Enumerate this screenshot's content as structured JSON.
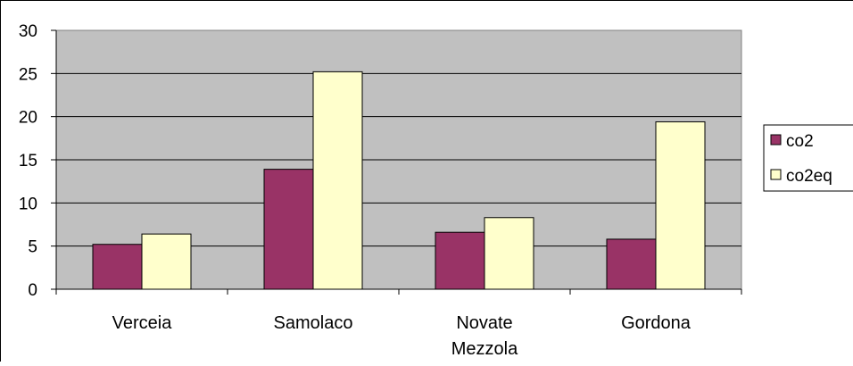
{
  "chart_data": {
    "type": "bar",
    "categories": [
      [
        "Verceia"
      ],
      [
        "Samolaco"
      ],
      [
        "Novate",
        "Mezzola"
      ],
      [
        "Gordona"
      ]
    ],
    "series": [
      {
        "name": "co2",
        "color": "#993366",
        "values": [
          5.2,
          13.9,
          6.6,
          5.8
        ]
      },
      {
        "name": "co2eq",
        "color": "#FFFFCC",
        "values": [
          6.4,
          25.2,
          8.3,
          19.4
        ]
      }
    ],
    "ylim": [
      0,
      30
    ],
    "yticks": [
      "0",
      "5",
      "10",
      "15",
      "20",
      "25",
      "30"
    ],
    "plot_background": "#C0C0C0",
    "grid": true,
    "legend": "right"
  }
}
